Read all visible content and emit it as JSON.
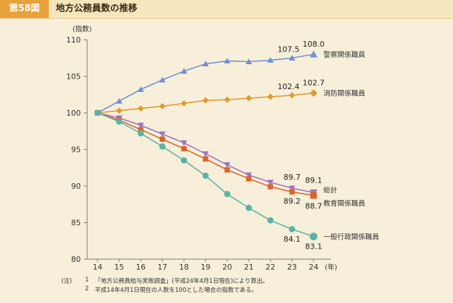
{
  "header": {
    "badge": "第58図",
    "title": "地方公務員数の推移"
  },
  "chart_data": {
    "type": "line",
    "ylabel": "(指数)",
    "xlabel_unit": "(年)",
    "ylim": [
      80,
      110
    ],
    "yticks": [
      80,
      85,
      90,
      95,
      100,
      105,
      110
    ],
    "x": [
      "14",
      "15",
      "16",
      "17",
      "18",
      "19",
      "20",
      "21",
      "22",
      "23",
      "24"
    ],
    "series": [
      {
        "name": "警察関係職員",
        "color": "#6f8fd6",
        "marker": "triangle-up",
        "values": [
          100,
          101.6,
          103.2,
          104.5,
          105.7,
          106.7,
          107.1,
          107.0,
          107.2,
          107.5,
          108.0
        ],
        "labels": [
          {
            "index": 9,
            "text": "107.5"
          },
          {
            "index": 10,
            "text": "108.0"
          }
        ]
      },
      {
        "name": "消防関係職員",
        "color": "#e09a30",
        "marker": "diamond",
        "values": [
          100,
          100.3,
          100.6,
          100.9,
          101.3,
          101.7,
          101.8,
          102.0,
          102.2,
          102.4,
          102.7
        ],
        "labels": [
          {
            "index": 9,
            "text": "102.4"
          },
          {
            "index": 10,
            "text": "102.7"
          }
        ]
      },
      {
        "name": "総計",
        "color": "#9b72c4",
        "marker": "triangle-down",
        "values": [
          100,
          99.3,
          98.3,
          97.1,
          95.9,
          94.4,
          92.9,
          91.5,
          90.5,
          89.7,
          89.1
        ],
        "labels": [
          {
            "index": 9,
            "text": "89.7"
          },
          {
            "index": 10,
            "text": "89.1"
          }
        ]
      },
      {
        "name": "教育関係職員",
        "color": "#d9652a",
        "marker": "square",
        "values": [
          100,
          99.0,
          97.7,
          96.4,
          95.1,
          93.7,
          92.2,
          91.0,
          89.9,
          89.2,
          88.7
        ],
        "labels": [
          {
            "index": 9,
            "text": "89.2"
          },
          {
            "index": 10,
            "text": "88.7"
          }
        ]
      },
      {
        "name": "一般行政関係職員",
        "color": "#5ab3a6",
        "marker": "circle",
        "values": [
          100,
          98.8,
          97.2,
          95.4,
          93.5,
          91.4,
          88.9,
          87.0,
          85.3,
          84.1,
          83.1
        ],
        "labels": [
          {
            "index": 9,
            "text": "84.1"
          },
          {
            "index": 10,
            "text": "83.1"
          }
        ]
      }
    ]
  },
  "notes": [
    {
      "prefix": "(注)",
      "num": "1",
      "text": "「地方公務員給与実態調査」(平成24年4月1日現在)により算出。"
    },
    {
      "prefix": "",
      "num": "2",
      "text": "平成14年4月1日現在の人数を100とした場合の指数である。"
    }
  ]
}
